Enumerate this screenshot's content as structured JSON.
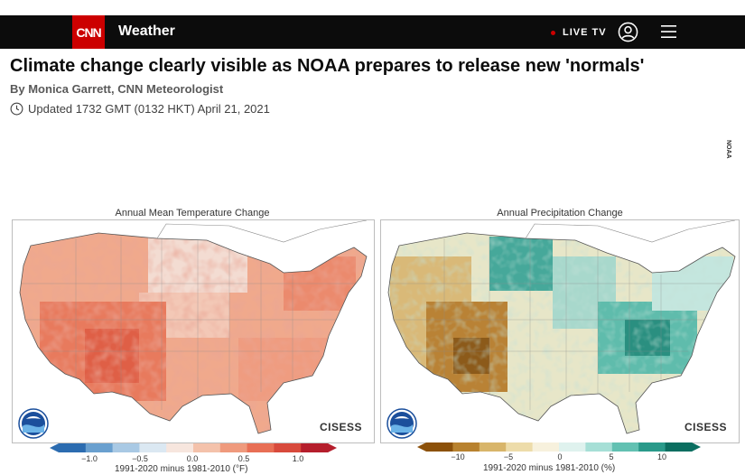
{
  "header": {
    "logo_text": "CNN",
    "section": "Weather",
    "live_tv": "LIVE TV",
    "icons": {
      "user": "user-circle-icon",
      "menu": "hamburger-menu-icon"
    },
    "colors": {
      "bar": "#0c0c0c",
      "logo": "#cc0000"
    }
  },
  "article": {
    "headline": "Climate change clearly visible as NOAA prepares to release new 'normals'",
    "byline": "By Monica Garrett, CNN Meteorologist",
    "updated": "Updated 1732 GMT (0132 HKT) April 21, 2021",
    "image_credit": "NOAA"
  },
  "maps": {
    "temperature": {
      "title": "Annual Mean Temperature Change",
      "legend_ticks": [
        "−1.0",
        "−0.5",
        "0.0",
        "0.5",
        "1.0"
      ],
      "legend_caption": "1991-2020 minus 1981-2010 (°F)",
      "legend_colors": [
        "#2c6cb0",
        "#6aa0cf",
        "#a9c9e4",
        "#dbe8f2",
        "#f7e6de",
        "#f4c2ab",
        "#ef9a7d",
        "#e86f55",
        "#d84a3c",
        "#b51e2c"
      ],
      "watermark": "CISESS"
    },
    "precipitation": {
      "title": "Annual Precipitation Change",
      "legend_ticks": [
        "−10",
        "−5",
        "0",
        "5",
        "10"
      ],
      "legend_caption": "1991-2020 minus 1981-2010 (%)",
      "legend_colors": [
        "#8c510a",
        "#b8822f",
        "#d8b56a",
        "#eddcaa",
        "#f7f1dd",
        "#dff2ee",
        "#a6dfd6",
        "#62c1b2",
        "#2a9a8a",
        "#0b6e60"
      ],
      "watermark": "CISESS"
    }
  }
}
